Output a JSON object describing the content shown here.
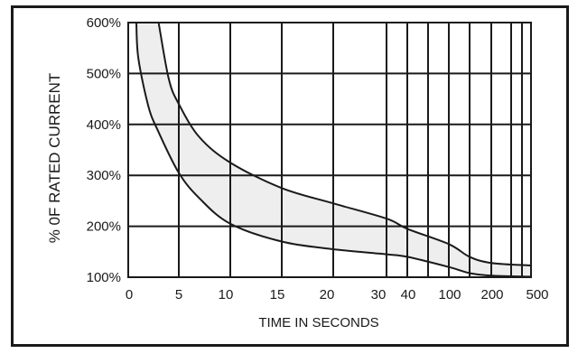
{
  "chart_data": {
    "type": "area",
    "title": "",
    "xlabel": "TIME IN SECONDS",
    "ylabel": "% 0F RATED CURRENT",
    "x_scale": "piecewise",
    "x_ticks": [
      "0",
      "5",
      "10",
      "15",
      "20",
      "30",
      "40",
      "100",
      "200",
      "500"
    ],
    "x_extra_gridlines": [
      50,
      60,
      300,
      400
    ],
    "y_ticks": [
      "100%",
      "200%",
      "300%",
      "400%",
      "500%",
      "600%"
    ],
    "ylim": [
      100,
      600
    ],
    "grid": true,
    "colors": {
      "band_fill": "#eeeeee",
      "line": "#1a1a1a",
      "grid": "#1a1a1a"
    },
    "series": [
      {
        "x": [
          0.8,
          1,
          2,
          3,
          5,
          7,
          10,
          15,
          20,
          30,
          40,
          60,
          100,
          200,
          500
        ],
        "y": [
          600,
          530,
          435,
          385,
          305,
          255,
          205,
          170,
          155,
          145,
          140,
          120,
          108,
          103,
          101
        ]
      },
      {
        "x": [
          3,
          4,
          5,
          7,
          10,
          15,
          20,
          30,
          40,
          60,
          100,
          200,
          500
        ],
        "y": [
          600,
          490,
          440,
          375,
          325,
          275,
          245,
          215,
          195,
          165,
          140,
          128,
          123
        ]
      }
    ]
  }
}
